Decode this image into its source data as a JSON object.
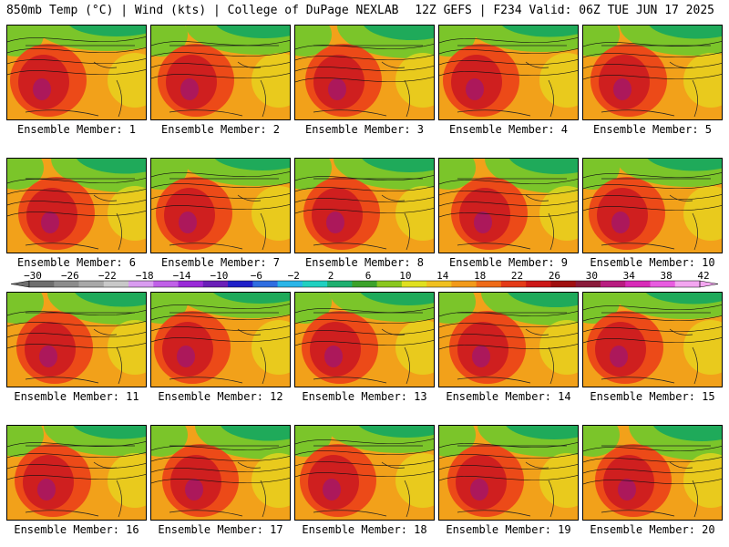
{
  "header": {
    "left": "850mb Temp (°C) | Wind (kts) | College of DuPage NEXLAB",
    "right": "12Z GEFS | F234 Valid: 06Z TUE JUN 17 2025"
  },
  "member_label_prefix": "Ensemble Member: ",
  "members": [
    {
      "label": "Ensemble Member: 1"
    },
    {
      "label": "Ensemble Member: 2"
    },
    {
      "label": "Ensemble Member: 3"
    },
    {
      "label": "Ensemble Member: 4"
    },
    {
      "label": "Ensemble Member: 5"
    },
    {
      "label": "Ensemble Member: 6"
    },
    {
      "label": "Ensemble Member: 7"
    },
    {
      "label": "Ensemble Member: 8"
    },
    {
      "label": "Ensemble Member: 9"
    },
    {
      "label": "Ensemble Member: 10"
    },
    {
      "label": "Ensemble Member: 11"
    },
    {
      "label": "Ensemble Member: 12"
    },
    {
      "label": "Ensemble Member: 13"
    },
    {
      "label": "Ensemble Member: 14"
    },
    {
      "label": "Ensemble Member: 15"
    },
    {
      "label": "Ensemble Member: 16"
    },
    {
      "label": "Ensemble Member: 17"
    },
    {
      "label": "Ensemble Member: 18"
    },
    {
      "label": "Ensemble Member: 19"
    },
    {
      "label": "Ensemble Member: 20"
    }
  ],
  "colorbar": {
    "ticks": [
      "-30",
      "-26",
      "-22",
      "-18",
      "-14",
      "-10",
      "-6",
      "-2",
      "2",
      "6",
      "10",
      "14",
      "18",
      "22",
      "26",
      "30",
      "34",
      "38",
      "42"
    ],
    "colors": [
      "#6e6e6e",
      "#8c8c8c",
      "#a8a8a8",
      "#c8c8c8",
      "#d99cf0",
      "#c060e8",
      "#9a2ad8",
      "#6a1fb8",
      "#2020c8",
      "#2f6de0",
      "#29b5e8",
      "#20d0c0",
      "#1fb070",
      "#3ca22a",
      "#8ac71f",
      "#e0e020",
      "#f0c020",
      "#f29a1a",
      "#ef6a18",
      "#e43a18",
      "#cc1818",
      "#a01010",
      "#8a1a3a",
      "#b81c80",
      "#d82ab8",
      "#e85ce0",
      "#f3a6f0"
    ]
  },
  "panel_colors": {
    "cold": "#1faa5a",
    "cool": "#7bc52a",
    "mild": "#e6d51e",
    "warm": "#f2a11a",
    "hot": "#ec4a18",
    "hotter": "#cf1f1f",
    "hottest": "#a2176a"
  }
}
